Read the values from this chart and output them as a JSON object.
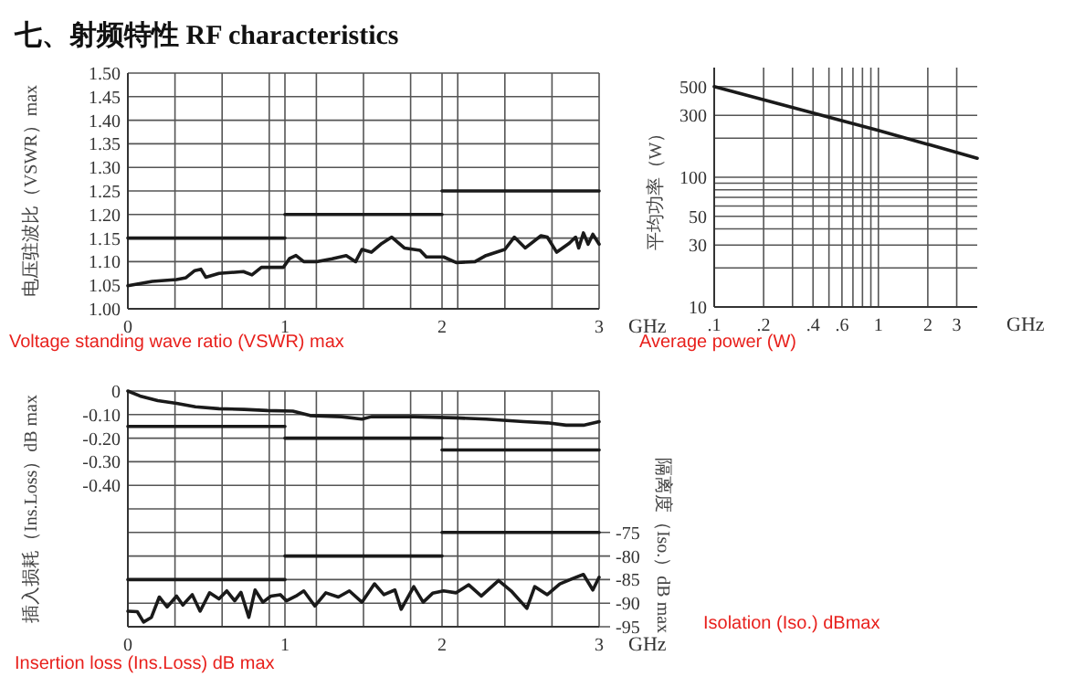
{
  "chart_data": [
    {
      "type": "line",
      "title": "七、射频特性 RF characteristics",
      "xlabel": "GHz",
      "ylabel": "电压驻波比（VSWR）max",
      "annotations": [
        "Voltage standing wave ratio (VSWR) max"
      ],
      "xlim": [
        0,
        3
      ],
      "xticks": [
        0,
        {
          "value": 0.3,
          "label": null
        },
        {
          "value": 0.6,
          "label": null
        },
        {
          "value": 0.9,
          "label": null
        },
        1,
        {
          "value": 1.2,
          "label": null
        },
        {
          "value": 1.5,
          "label": null
        },
        {
          "value": 1.8,
          "label": null
        },
        2,
        {
          "value": 2.1,
          "label": null
        },
        {
          "value": 2.4,
          "label": null
        },
        {
          "value": 2.7,
          "label": null
        },
        3
      ],
      "ylim": [
        1,
        1.5
      ],
      "yticks": [
        {
          "value": 1,
          "label": "1.00"
        },
        {
          "value": 1.05,
          "label": "1.05"
        },
        {
          "value": 1.1,
          "label": "1.10"
        },
        {
          "value": 1.15,
          "label": "1.15"
        },
        {
          "value": 1.2,
          "label": "1.20"
        },
        {
          "value": 1.25,
          "label": "1.25"
        },
        {
          "value": 1.3,
          "label": "1.30"
        },
        {
          "value": 1.35,
          "label": "1.35"
        },
        {
          "value": 1.4,
          "label": "1.40"
        },
        {
          "value": 1.45,
          "label": "1.45"
        },
        {
          "value": 1.5,
          "label": "1.50"
        }
      ],
      "grid": true,
      "line_style": "solid",
      "series": [
        {
          "color": "#1a1a1a",
          "x": [
            0,
            0.155,
            0.31,
            0.37,
            0.426,
            0.465,
            0.496,
            0.58,
            0.735,
            0.79,
            0.85,
            0.99,
            1.03,
            1.07,
            1.12,
            1.2,
            1.3,
            1.39,
            1.45,
            1.49,
            1.55,
            1.61,
            1.68,
            1.76,
            1.86,
            1.9,
            2.01,
            2.09,
            2.21,
            2.28,
            2.4,
            2.46,
            2.53,
            2.63,
            2.67,
            2.73,
            2.81,
            2.85,
            2.87,
            2.9,
            2.93,
            2.96,
            3
          ],
          "values": [
            1.049,
            1.058,
            1.062,
            1.066,
            1.081,
            1.084,
            1.067,
            1.075,
            1.079,
            1.072,
            1.088,
            1.088,
            1.107,
            1.113,
            1.1,
            1.1,
            1.106,
            1.113,
            1.1,
            1.126,
            1.12,
            1.137,
            1.152,
            1.129,
            1.124,
            1.11,
            1.11,
            1.098,
            1.1,
            1.113,
            1.126,
            1.152,
            1.129,
            1.155,
            1.152,
            1.12,
            1.139,
            1.152,
            1.129,
            1.161,
            1.137,
            1.158,
            1.137
          ]
        },
        {
          "color": "#1a1a1a",
          "x": [
            0,
            1
          ],
          "values": [
            1.15,
            1.15
          ]
        },
        {
          "color": "#1a1a1a",
          "x": [
            1,
            2
          ],
          "values": [
            1.2,
            1.2
          ]
        },
        {
          "color": "#1a1a1a",
          "x": [
            2,
            3
          ],
          "values": [
            1.25,
            1.25
          ]
        }
      ]
    },
    {
      "type": "line",
      "xlabel": "GHz",
      "ylabel": "平均功率（W）",
      "annotations": [
        "Average power (W)"
      ],
      "log": "xy",
      "xlim": [
        0.1,
        4
      ],
      "xticks": [
        {
          "value": 0.1,
          "label": ".1"
        },
        {
          "value": 0.2,
          "label": ".2"
        },
        {
          "value": 0.3,
          "label": null
        },
        {
          "value": 0.4,
          "label": ".4"
        },
        {
          "value": 0.5,
          "label": null
        },
        {
          "value": 0.6,
          "label": ".6"
        },
        {
          "value": 0.7,
          "label": null
        },
        {
          "value": 0.8,
          "label": null
        },
        {
          "value": 0.9,
          "label": null
        },
        1,
        2,
        3
      ],
      "ylim": [
        10,
        700
      ],
      "yticks": [
        10,
        {
          "value": 20,
          "label": null
        },
        30,
        {
          "value": 40,
          "label": null
        },
        50,
        {
          "value": 60,
          "label": null
        },
        {
          "value": 70,
          "label": null
        },
        {
          "value": 80,
          "label": null
        },
        {
          "value": 90,
          "label": null
        },
        100,
        {
          "value": 200,
          "label": null
        },
        300,
        500
      ],
      "grid": true,
      "line_style": "solid",
      "series": [
        {
          "color": "#1a1a1a",
          "x": [
            0.1,
            1,
            4
          ],
          "values": [
            500,
            230,
            140
          ]
        }
      ]
    },
    {
      "type": "line",
      "xlabel": "GHz",
      "ylabel": "插入损耗（Ins.Loss）dB max",
      "y2label": "隔离度（Iso.）dB max",
      "annotations": [
        "Insertion loss (Ins.Loss) dB max",
        "Isolation (Iso.) dBmax"
      ],
      "xlim": [
        0,
        3
      ],
      "xticks": [
        0,
        {
          "value": 0.3,
          "label": null
        },
        {
          "value": 0.6,
          "label": null
        },
        {
          "value": 0.9,
          "label": null
        },
        1,
        {
          "value": 1.2,
          "label": null
        },
        {
          "value": 1.5,
          "label": null
        },
        {
          "value": 1.8,
          "label": null
        },
        2,
        {
          "value": 2.1,
          "label": null
        },
        {
          "value": 2.4,
          "label": null
        },
        {
          "value": 2.7,
          "label": null
        },
        3
      ],
      "ylim": [
        -1,
        0
      ],
      "yticks": [
        0,
        {
          "value": -0.1,
          "label": "-0.10"
        },
        {
          "value": -0.2,
          "label": "-0.20"
        },
        {
          "value": -0.3,
          "label": "-0.30"
        },
        {
          "value": -0.4,
          "label": "-0.40"
        },
        {
          "value": -0.5,
          "label": null
        }
      ],
      "y2lim": [
        -95,
        -45
      ],
      "y2ticks": [
        -75,
        -80,
        -85,
        -90,
        -95
      ],
      "grid": true,
      "line_style": "solid",
      "series": [
        {
          "color": "#1a1a1a",
          "x": [
            0,
            0.077,
            0.19,
            0.31,
            0.43,
            0.58,
            0.74,
            0.89,
            1.05,
            1.16,
            1.36,
            1.49,
            1.55,
            1.82,
            2.09,
            2.28,
            2.52,
            2.67,
            2.79,
            2.9,
            3
          ],
          "values": [
            0,
            -0.021,
            -0.041,
            -0.052,
            -0.067,
            -0.075,
            -0.078,
            -0.083,
            -0.085,
            -0.104,
            -0.109,
            -0.119,
            -0.109,
            -0.109,
            -0.114,
            -0.119,
            -0.13,
            -0.135,
            -0.145,
            -0.145,
            -0.13
          ]
        },
        {
          "color": "#1a1a1a",
          "x": [
            0,
            1
          ],
          "values": [
            -0.15,
            -0.15
          ]
        },
        {
          "color": "#1a1a1a",
          "x": [
            1,
            2
          ],
          "values": [
            -0.2,
            -0.2
          ]
        },
        {
          "color": "#1a1a1a",
          "x": [
            2,
            3
          ],
          "values": [
            -0.25,
            -0.25
          ]
        },
        {
          "color": "#1a1a1a",
          "axis": "y2",
          "x": [
            0,
            0.06,
            0.1,
            0.15,
            0.2,
            0.25,
            0.31,
            0.35,
            0.41,
            0.46,
            0.52,
            0.58,
            0.63,
            0.68,
            0.72,
            0.77,
            0.81,
            0.86,
            0.91,
            0.97,
            1.01,
            1.07,
            1.12,
            1.19,
            1.26,
            1.34,
            1.41,
            1.49,
            1.57,
            1.63,
            1.7,
            1.74,
            1.82,
            1.88,
            1.94,
            2.01,
            2.09,
            2.17,
            2.25,
            2.36,
            2.44,
            2.54,
            2.59,
            2.67,
            2.75,
            2.83,
            2.9,
            2.96,
            3
          ],
          "values": [
            -91.7,
            -91.8,
            -94,
            -93,
            -88.7,
            -90.8,
            -88.5,
            -90.4,
            -88.2,
            -91.7,
            -87.8,
            -89.1,
            -87.4,
            -89.5,
            -87.7,
            -93,
            -87.2,
            -89.8,
            -88.5,
            -88.2,
            -89.5,
            -88.5,
            -87.4,
            -90.6,
            -87.8,
            -88.7,
            -87.4,
            -89.8,
            -85.9,
            -88.2,
            -87.2,
            -91.3,
            -86.5,
            -89.8,
            -87.9,
            -87.4,
            -87.8,
            -86.1,
            -88.5,
            -85.2,
            -87.4,
            -91.1,
            -86.5,
            -88.2,
            -85.9,
            -84.8,
            -83.9,
            -87.2,
            -84.5
          ]
        },
        {
          "color": "#1a1a1a",
          "axis": "y2",
          "x": [
            0,
            1
          ],
          "values": [
            -85,
            -85
          ]
        },
        {
          "color": "#1a1a1a",
          "axis": "y2",
          "x": [
            1,
            2
          ],
          "values": [
            -80,
            -80
          ]
        },
        {
          "color": "#1a1a1a",
          "axis": "y2",
          "x": [
            2,
            3
          ],
          "values": [
            -75,
            -75
          ]
        }
      ]
    }
  ]
}
